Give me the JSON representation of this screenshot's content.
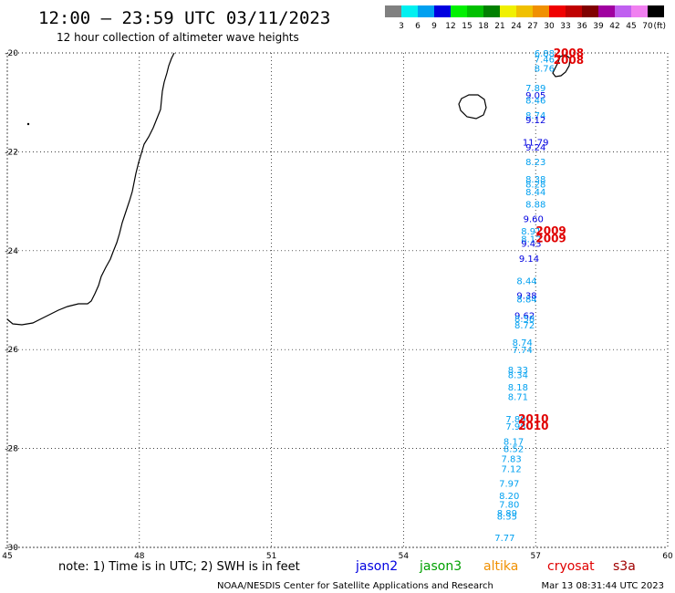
{
  "header": {
    "title": "12:00 – 23:59 UTC 03/11/2023",
    "subtitle": "12 hour collection of altimeter wave heights"
  },
  "legend": {
    "unit": "(ft)",
    "colors": [
      "#808080",
      "#00f0f0",
      "#00a0f0",
      "#0000e0",
      "#00f000",
      "#00c000",
      "#008000",
      "#f0f000",
      "#f0c000",
      "#f09000",
      "#f00000",
      "#c00000",
      "#800000",
      "#a000a0",
      "#c060f0",
      "#f080f0",
      "#000000"
    ],
    "labels": [
      "3",
      "6",
      "9",
      "12",
      "15",
      "18",
      "21",
      "24",
      "27",
      "30",
      "33",
      "36",
      "39",
      "42",
      "45",
      "70"
    ]
  },
  "map": {
    "x_ticks": [
      "45",
      "48",
      "51",
      "54",
      "57",
      "60"
    ],
    "y_ticks": [
      "-20",
      "-22",
      "-24",
      "-26",
      "-28",
      "-30"
    ],
    "lon_range": [
      45,
      60
    ],
    "lat_range": [
      -30,
      -20
    ]
  },
  "observations": [
    {
      "v": "6.88",
      "lon": 57.2,
      "lat": -20.0,
      "c": "#00a0f0"
    },
    {
      "v": "7.46",
      "lon": 57.2,
      "lat": -20.12,
      "c": "#00a0f0"
    },
    {
      "v": "8.76",
      "lon": 57.2,
      "lat": -20.3,
      "c": "#00a0f0"
    },
    {
      "v": "7.89",
      "lon": 57.0,
      "lat": -20.7,
      "c": "#00a0f0"
    },
    {
      "v": "9.05",
      "lon": 57.0,
      "lat": -20.85,
      "c": "#0000e0"
    },
    {
      "v": "8.46",
      "lon": 57.0,
      "lat": -20.95,
      "c": "#00a0f0"
    },
    {
      "v": "8.74",
      "lon": 57.0,
      "lat": -21.25,
      "c": "#00a0f0"
    },
    {
      "v": "9.12",
      "lon": 57.0,
      "lat": -21.35,
      "c": "#0000e0"
    },
    {
      "v": "11.79",
      "lon": 57.0,
      "lat": -21.8,
      "c": "#0000e0"
    },
    {
      "v": "9.24",
      "lon": 57.0,
      "lat": -21.9,
      "c": "#0000e0"
    },
    {
      "v": "8.23",
      "lon": 57.0,
      "lat": -22.2,
      "c": "#00a0f0"
    },
    {
      "v": "8.38",
      "lon": 57.0,
      "lat": -22.55,
      "c": "#00a0f0"
    },
    {
      "v": "8.28",
      "lon": 57.0,
      "lat": -22.65,
      "c": "#00a0f0"
    },
    {
      "v": "8.44",
      "lon": 57.0,
      "lat": -22.8,
      "c": "#00a0f0"
    },
    {
      "v": "8.88",
      "lon": 57.0,
      "lat": -23.05,
      "c": "#00a0f0"
    },
    {
      "v": "9.60",
      "lon": 56.95,
      "lat": -23.35,
      "c": "#0000e0"
    },
    {
      "v": "8.91",
      "lon": 56.9,
      "lat": -23.6,
      "c": "#00a0f0"
    },
    {
      "v": "8.12",
      "lon": 56.9,
      "lat": -23.75,
      "c": "#00a0f0"
    },
    {
      "v": "9.43",
      "lon": 56.9,
      "lat": -23.85,
      "c": "#0000e0"
    },
    {
      "v": "9.14",
      "lon": 56.85,
      "lat": -24.15,
      "c": "#0000e0"
    },
    {
      "v": "8.44",
      "lon": 56.8,
      "lat": -24.6,
      "c": "#00a0f0"
    },
    {
      "v": "9.38",
      "lon": 56.8,
      "lat": -24.9,
      "c": "#0000e0"
    },
    {
      "v": "8.84",
      "lon": 56.8,
      "lat": -24.97,
      "c": "#00a0f0"
    },
    {
      "v": "9.62",
      "lon": 56.75,
      "lat": -25.3,
      "c": "#0000e0"
    },
    {
      "v": "8.58",
      "lon": 56.75,
      "lat": -25.37,
      "c": "#00a0f0"
    },
    {
      "v": "8.72",
      "lon": 56.75,
      "lat": -25.5,
      "c": "#00a0f0"
    },
    {
      "v": "8.74",
      "lon": 56.7,
      "lat": -25.85,
      "c": "#00a0f0"
    },
    {
      "v": "7.74",
      "lon": 56.7,
      "lat": -26.0,
      "c": "#00a0f0"
    },
    {
      "v": "8.33",
      "lon": 56.6,
      "lat": -26.4,
      "c": "#00a0f0"
    },
    {
      "v": "8.34",
      "lon": 56.6,
      "lat": -26.5,
      "c": "#00a0f0"
    },
    {
      "v": "8.18",
      "lon": 56.6,
      "lat": -26.75,
      "c": "#00a0f0"
    },
    {
      "v": "8.71",
      "lon": 56.6,
      "lat": -26.95,
      "c": "#00a0f0"
    },
    {
      "v": "7.89",
      "lon": 56.55,
      "lat": -27.4,
      "c": "#00a0f0"
    },
    {
      "v": "7.98",
      "lon": 56.55,
      "lat": -27.55,
      "c": "#00a0f0"
    },
    {
      "v": "8.17",
      "lon": 56.5,
      "lat": -27.85,
      "c": "#00a0f0"
    },
    {
      "v": "8.52",
      "lon": 56.5,
      "lat": -28.0,
      "c": "#00a0f0"
    },
    {
      "v": "7.83",
      "lon": 56.45,
      "lat": -28.2,
      "c": "#00a0f0"
    },
    {
      "v": "7.12",
      "lon": 56.45,
      "lat": -28.4,
      "c": "#00a0f0"
    },
    {
      "v": "7.97",
      "lon": 56.4,
      "lat": -28.7,
      "c": "#00a0f0"
    },
    {
      "v": "8.20",
      "lon": 56.4,
      "lat": -28.95,
      "c": "#00a0f0"
    },
    {
      "v": "7.80",
      "lon": 56.4,
      "lat": -29.12,
      "c": "#00a0f0"
    },
    {
      "v": "8.89",
      "lon": 56.35,
      "lat": -29.3,
      "c": "#00a0f0"
    },
    {
      "v": "8.35",
      "lon": 56.35,
      "lat": -29.36,
      "c": "#00a0f0"
    },
    {
      "v": "7.77",
      "lon": 56.3,
      "lat": -29.8,
      "c": "#00a0f0"
    }
  ],
  "cyclone_labels": [
    {
      "v": "2008",
      "lon": 57.75,
      "lat": -20.0
    },
    {
      "v": "2008",
      "lon": 57.75,
      "lat": -20.15
    },
    {
      "v": "2009",
      "lon": 57.35,
      "lat": -23.6
    },
    {
      "v": "2009",
      "lon": 57.35,
      "lat": -23.75
    },
    {
      "v": "2010",
      "lon": 56.95,
      "lat": -27.4
    },
    {
      "v": "2010",
      "lon": 56.95,
      "lat": -27.55
    }
  ],
  "footer": {
    "note": "note: 1) Time is in UTC; 2) SWH is in feet",
    "satellites": [
      {
        "name": "jason2",
        "color": "#0000e0"
      },
      {
        "name": "jason3",
        "color": "#00a000"
      },
      {
        "name": "altika",
        "color": "#f09000"
      },
      {
        "name": "cryosat",
        "color": "#e00000"
      },
      {
        "name": "s3a",
        "color": "#a00000"
      }
    ],
    "credit": "NOAA/NESDIS Center for Satellite Applications and Research",
    "timestamp": "Mar 13 08:31:44 UTC 2023"
  }
}
